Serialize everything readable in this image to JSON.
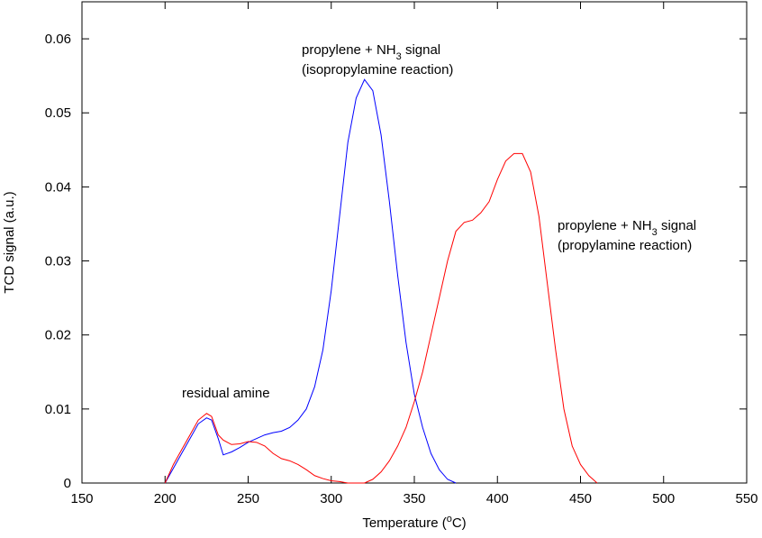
{
  "chart_data": {
    "type": "line",
    "xlabel": [
      "Temperature (",
      "o",
      "C)"
    ],
    "ylabel": "TCD signal (a.u.)",
    "xlim": [
      150,
      550
    ],
    "ylim": [
      0,
      0.065
    ],
    "xticks": [
      150,
      200,
      250,
      300,
      350,
      400,
      450,
      500,
      550
    ],
    "yticks": [
      0,
      0.01,
      0.02,
      0.03,
      0.04,
      0.05,
      0.06
    ],
    "grid": false,
    "annotations": [
      [
        [
          "residual amine"
        ]
      ],
      [
        [
          "propylene + NH",
          "3",
          " signal"
        ],
        [
          "(isopropylamine reaction)"
        ]
      ],
      [
        [
          "propylene + NH",
          "3",
          " signal"
        ],
        [
          "(propylamine reaction)"
        ]
      ]
    ],
    "series": [
      {
        "color": "#0000ff",
        "x": [
          200,
          205,
          210,
          215,
          220,
          225,
          228,
          232,
          235,
          240,
          245,
          250,
          255,
          260,
          265,
          270,
          275,
          280,
          285,
          290,
          295,
          300,
          305,
          310,
          315,
          320,
          325,
          330,
          335,
          340,
          345,
          350,
          355,
          360,
          365,
          370,
          375
        ],
        "values": [
          0,
          0.002,
          0.004,
          0.006,
          0.008,
          0.0088,
          0.0085,
          0.006,
          0.0038,
          0.0042,
          0.0048,
          0.0055,
          0.006,
          0.0065,
          0.0068,
          0.007,
          0.0075,
          0.0085,
          0.01,
          0.013,
          0.018,
          0.026,
          0.036,
          0.046,
          0.052,
          0.0545,
          0.053,
          0.047,
          0.038,
          0.028,
          0.019,
          0.012,
          0.0075,
          0.004,
          0.0018,
          0.0005,
          0
        ]
      },
      {
        "color": "#ff0000",
        "x": [
          200,
          205,
          210,
          215,
          220,
          225,
          228,
          232,
          235,
          240,
          245,
          250,
          255,
          260,
          265,
          270,
          275,
          280,
          285,
          290,
          295,
          300,
          305,
          310,
          315,
          320,
          325,
          330,
          335,
          340,
          345,
          350,
          355,
          360,
          365,
          370,
          375,
          380,
          385,
          390,
          395,
          400,
          405,
          410,
          415,
          420,
          425,
          430,
          435,
          440,
          445,
          450,
          455,
          460
        ],
        "values": [
          0,
          0.0025,
          0.0045,
          0.0065,
          0.0085,
          0.0094,
          0.009,
          0.0065,
          0.0058,
          0.0052,
          0.0053,
          0.0056,
          0.0055,
          0.005,
          0.004,
          0.0033,
          0.003,
          0.0025,
          0.0018,
          0.001,
          0.0006,
          0.0003,
          0.0002,
          0,
          0,
          0,
          0.0005,
          0.0015,
          0.003,
          0.005,
          0.0075,
          0.011,
          0.015,
          0.02,
          0.025,
          0.03,
          0.034,
          0.0352,
          0.0355,
          0.0365,
          0.038,
          0.041,
          0.0435,
          0.0445,
          0.0445,
          0.042,
          0.036,
          0.027,
          0.018,
          0.01,
          0.005,
          0.0025,
          0.001,
          0
        ]
      }
    ]
  }
}
